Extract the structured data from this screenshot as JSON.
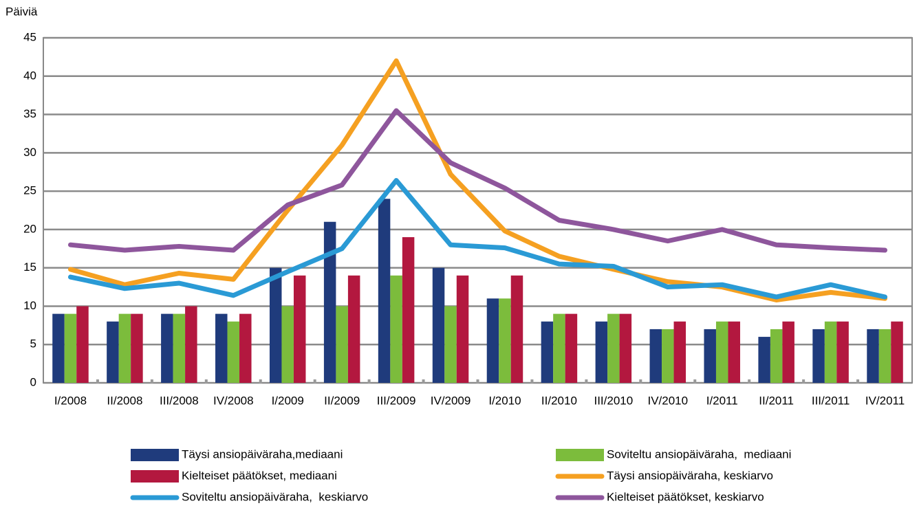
{
  "chart_data": {
    "type": "bar",
    "y_label": "Päiviä",
    "categories": [
      "I/2008",
      "II/2008",
      "III/2008",
      "IV/2008",
      "I/2009",
      "II/2009",
      "III/2009",
      "IV/2009",
      "I/2010",
      "II/2010",
      "III/2010",
      "IV/2010",
      "I/2011",
      "II/2011",
      "III/2011",
      "IV/2011"
    ],
    "series": [
      {
        "name": "Täysi ansiopäiväraha,mediaani",
        "type": "bar",
        "color": "#1f3b7c",
        "values": [
          9,
          8,
          9,
          9,
          15,
          21,
          24,
          15,
          11,
          8,
          8,
          7,
          7,
          6,
          7,
          7
        ]
      },
      {
        "name": "Soviteltu ansiopäiväraha,  mediaani",
        "type": "bar",
        "color": "#7cbc3c",
        "values": [
          9,
          9,
          9,
          8,
          10,
          10,
          14,
          10,
          11,
          9,
          9,
          7,
          8,
          7,
          8,
          7
        ]
      },
      {
        "name": "Kielteiset päätökset, mediaani",
        "type": "bar",
        "color": "#b3183f",
        "values": [
          10,
          9,
          10,
          9,
          14,
          14,
          19,
          14,
          14,
          9,
          9,
          8,
          8,
          8,
          8,
          8
        ]
      },
      {
        "name": "Täysi ansiopäiväraha, keskiarvo",
        "type": "line",
        "color": "#f5a021",
        "values": [
          14.8,
          12.8,
          14.3,
          13.5,
          22.5,
          31,
          42,
          27.2,
          19.8,
          16.5,
          14.8,
          13.2,
          12.5,
          10.8,
          11.8,
          11
        ]
      },
      {
        "name": "Soviteltu ansiopäiväraha,  keskiarvo",
        "type": "line",
        "color": "#2a9ad5",
        "values": [
          13.8,
          12.3,
          13,
          11.4,
          14.5,
          17.5,
          26.4,
          18,
          17.6,
          15.5,
          15.2,
          12.5,
          12.8,
          11.2,
          12.8,
          11.2
        ]
      },
      {
        "name": "Kielteiset päätökset, keskiarvo",
        "type": "line",
        "color": "#8e569c",
        "values": [
          18,
          17.3,
          17.8,
          17.3,
          23.2,
          25.8,
          35.5,
          28.7,
          25.4,
          21.2,
          20,
          18.5,
          20,
          18,
          17.6,
          17.3
        ]
      }
    ],
    "ylim": [
      0,
      45
    ],
    "yticks": [
      0,
      5,
      10,
      15,
      20,
      25,
      30,
      35,
      40,
      45
    ],
    "grid": true
  }
}
